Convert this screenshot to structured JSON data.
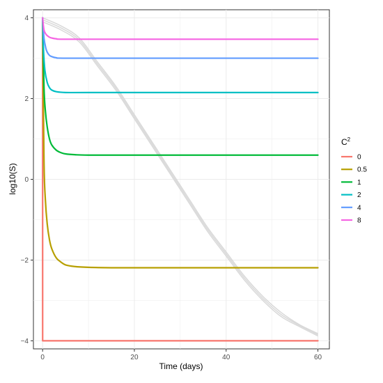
{
  "chart_data": {
    "type": "line",
    "xlabel": "Time (days)",
    "ylabel": "log10(S)",
    "xlim": [
      -2,
      62.5
    ],
    "ylim": [
      -4.2,
      4.2
    ],
    "x_ticks": [
      0,
      20,
      40,
      60
    ],
    "y_ticks": [
      -4,
      -2,
      0,
      2,
      4
    ],
    "grid": true,
    "legend": {
      "title": "C",
      "title_superscript": "2",
      "placement": "right"
    },
    "background_curves": {
      "color": "#d9d9d9",
      "count": 3,
      "points": [
        [
          [
            0,
            4.0
          ],
          [
            4,
            3.8
          ],
          [
            8,
            3.5
          ],
          [
            12,
            2.9
          ],
          [
            16,
            2.3
          ],
          [
            20,
            1.6
          ],
          [
            24,
            0.9
          ],
          [
            28,
            0.2
          ],
          [
            32,
            -0.5
          ],
          [
            36,
            -1.2
          ],
          [
            40,
            -1.8
          ],
          [
            44,
            -2.4
          ],
          [
            48,
            -2.9
          ],
          [
            52,
            -3.3
          ],
          [
            56,
            -3.6
          ],
          [
            60,
            -3.82
          ]
        ],
        [
          [
            0,
            3.95
          ],
          [
            4,
            3.75
          ],
          [
            8,
            3.45
          ],
          [
            12,
            2.85
          ],
          [
            16,
            2.25
          ],
          [
            20,
            1.55
          ],
          [
            24,
            0.85
          ],
          [
            28,
            0.15
          ],
          [
            32,
            -0.55
          ],
          [
            36,
            -1.25
          ],
          [
            40,
            -1.85
          ],
          [
            44,
            -2.45
          ],
          [
            48,
            -2.95
          ],
          [
            52,
            -3.35
          ],
          [
            56,
            -3.62
          ],
          [
            60,
            -3.85
          ]
        ],
        [
          [
            0,
            3.9
          ],
          [
            4,
            3.7
          ],
          [
            8,
            3.4
          ],
          [
            12,
            2.8
          ],
          [
            16,
            2.2
          ],
          [
            20,
            1.5
          ],
          [
            24,
            0.8
          ],
          [
            28,
            0.1
          ],
          [
            32,
            -0.6
          ],
          [
            36,
            -1.3
          ],
          [
            40,
            -1.9
          ],
          [
            44,
            -2.5
          ],
          [
            48,
            -3.0
          ],
          [
            52,
            -3.4
          ],
          [
            56,
            -3.65
          ],
          [
            60,
            -3.88
          ]
        ]
      ]
    },
    "series": [
      {
        "name": "0",
        "color": "#F8766D",
        "points": [
          [
            0,
            4.0
          ],
          [
            0.01,
            -4.0
          ],
          [
            60,
            -4.0
          ]
        ]
      },
      {
        "name": "0.5",
        "color": "#B79F00",
        "points": [
          [
            0,
            4.0
          ],
          [
            0.3,
            0.5
          ],
          [
            0.6,
            -0.5
          ],
          [
            1,
            -1.1
          ],
          [
            1.5,
            -1.5
          ],
          [
            2,
            -1.72
          ],
          [
            3,
            -1.95
          ],
          [
            4,
            -2.05
          ],
          [
            5,
            -2.12
          ],
          [
            7,
            -2.16
          ],
          [
            10,
            -2.18
          ],
          [
            15,
            -2.19
          ],
          [
            20,
            -2.19
          ],
          [
            30,
            -2.19
          ],
          [
            40,
            -2.19
          ],
          [
            50,
            -2.19
          ],
          [
            60,
            -2.19
          ]
        ]
      },
      {
        "name": "1",
        "color": "#00BA38",
        "points": [
          [
            0,
            4.0
          ],
          [
            0.3,
            2.3
          ],
          [
            0.6,
            1.7
          ],
          [
            1,
            1.3
          ],
          [
            1.5,
            1.0
          ],
          [
            2,
            0.85
          ],
          [
            3,
            0.72
          ],
          [
            4,
            0.66
          ],
          [
            5,
            0.63
          ],
          [
            7,
            0.61
          ],
          [
            10,
            0.6
          ],
          [
            20,
            0.6
          ],
          [
            40,
            0.6
          ],
          [
            60,
            0.6
          ]
        ]
      },
      {
        "name": "2",
        "color": "#00BFC4",
        "points": [
          [
            0,
            4.0
          ],
          [
            0.2,
            3.2
          ],
          [
            0.5,
            2.7
          ],
          [
            1,
            2.4
          ],
          [
            1.5,
            2.27
          ],
          [
            2,
            2.21
          ],
          [
            3,
            2.17
          ],
          [
            5,
            2.15
          ],
          [
            10,
            2.15
          ],
          [
            30,
            2.15
          ],
          [
            60,
            2.15
          ]
        ]
      },
      {
        "name": "4",
        "color": "#619CFF",
        "points": [
          [
            0,
            4.0
          ],
          [
            0.3,
            3.5
          ],
          [
            0.7,
            3.25
          ],
          [
            1,
            3.15
          ],
          [
            1.5,
            3.07
          ],
          [
            2,
            3.04
          ],
          [
            3,
            3.01
          ],
          [
            5,
            3.0
          ],
          [
            20,
            3.0
          ],
          [
            60,
            3.0
          ]
        ]
      },
      {
        "name": "8",
        "color": "#F564E3",
        "points": [
          [
            0,
            4.0
          ],
          [
            0.3,
            3.7
          ],
          [
            0.7,
            3.6
          ],
          [
            1,
            3.56
          ],
          [
            1.5,
            3.52
          ],
          [
            2,
            3.5
          ],
          [
            3,
            3.48
          ],
          [
            5,
            3.47
          ],
          [
            20,
            3.47
          ],
          [
            60,
            3.47
          ]
        ]
      }
    ]
  }
}
